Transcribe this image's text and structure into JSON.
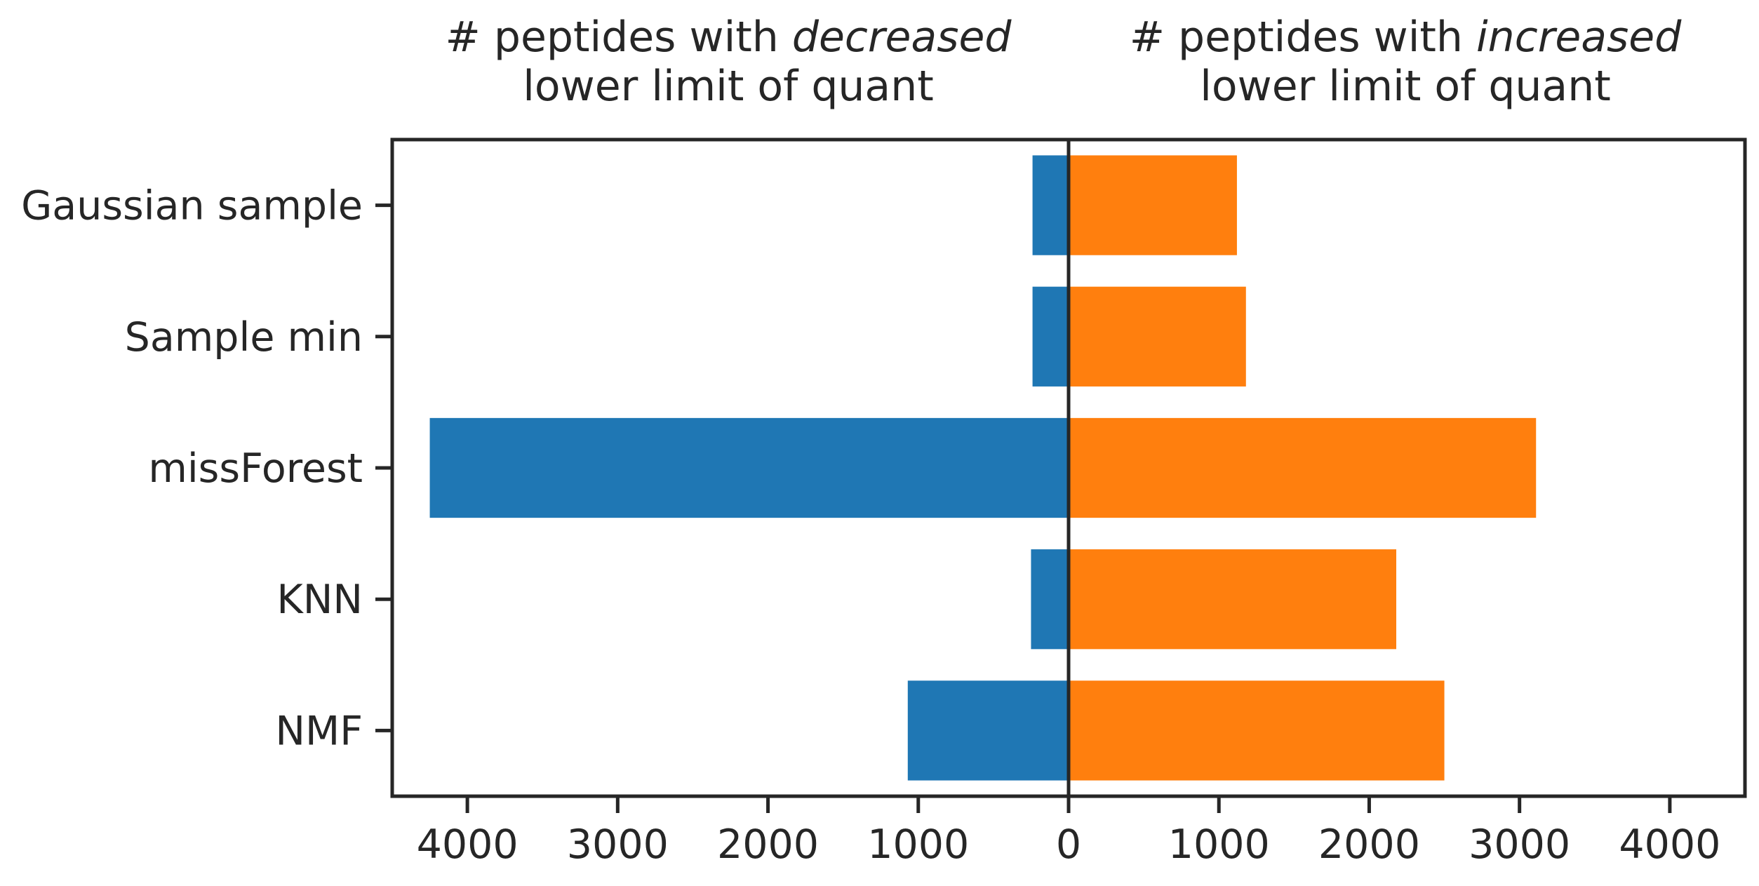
{
  "chart_data": {
    "type": "bar",
    "orientation": "horizontal",
    "layout": "diverging",
    "title_left": {
      "prefix": "# peptides with ",
      "emphasis": "decreased",
      "line2": "lower limit of quant"
    },
    "title_right": {
      "prefix": "# peptides with ",
      "emphasis": "increased",
      "line2": "lower limit of quant"
    },
    "categories": [
      "Gaussian sample",
      "Sample min",
      "missForest",
      "KNN",
      "NMF"
    ],
    "series": [
      {
        "key": "decreased",
        "color": "#1f77b4",
        "values": [
          240,
          240,
          4250,
          250,
          1070
        ]
      },
      {
        "key": "increased",
        "color": "#ff7f0e",
        "values": [
          1120,
          1180,
          3110,
          2180,
          2500
        ]
      }
    ],
    "xlim": [
      -4500,
      4500
    ],
    "xticks": [
      -4000,
      -3000,
      -2000,
      -1000,
      0,
      1000,
      2000,
      3000,
      4000
    ],
    "xtick_labels": [
      "4000",
      "3000",
      "2000",
      "1000",
      "0",
      "1000",
      "2000",
      "3000",
      "4000"
    ],
    "grid": false,
    "legend": "none"
  }
}
